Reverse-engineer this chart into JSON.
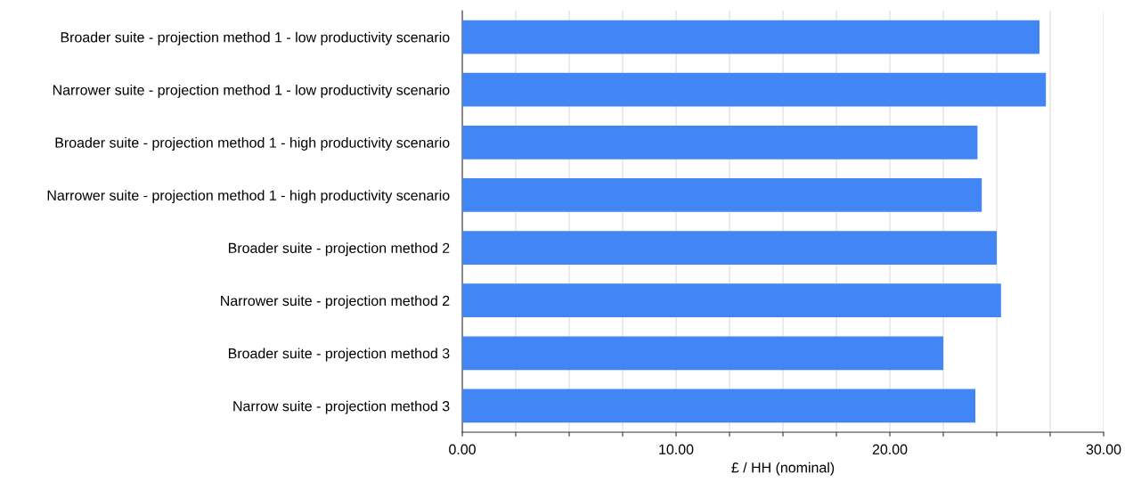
{
  "chart_data": {
    "type": "bar",
    "orientation": "horizontal",
    "xlabel": "£ / HH (nominal)",
    "categories": [
      "Broader suite - projection method 1 - low productivity scenario",
      "Narrower suite - projection method 1 - low productivity scenario",
      "Broader suite - projection method 1 - high productivity scenario",
      "Narrower suite - projection method 1 - high productivity scenario",
      "Broader suite - projection method 2",
      "Narrower suite - projection method 2",
      "Broader suite - projection method 3",
      "Narrow suite - projection method 3"
    ],
    "values": [
      27.0,
      27.3,
      24.1,
      24.3,
      25.0,
      25.2,
      22.5,
      24.0
    ],
    "color": "#4285f4",
    "xlim": [
      0,
      30
    ],
    "xticks": [
      {
        "value": 0,
        "label": "0.00"
      },
      {
        "value": 2.5,
        "label": null
      },
      {
        "value": 5,
        "label": null
      },
      {
        "value": 7.5,
        "label": null
      },
      {
        "value": 10,
        "label": "10.00"
      },
      {
        "value": 12.5,
        "label": null
      },
      {
        "value": 15,
        "label": null
      },
      {
        "value": 17.5,
        "label": null
      },
      {
        "value": 20,
        "label": "20.00"
      },
      {
        "value": 22.5,
        "label": null
      },
      {
        "value": 25,
        "label": null
      },
      {
        "value": 27.5,
        "label": null
      },
      {
        "value": 30,
        "label": "30.00"
      }
    ],
    "grid": "x",
    "legend": false
  }
}
